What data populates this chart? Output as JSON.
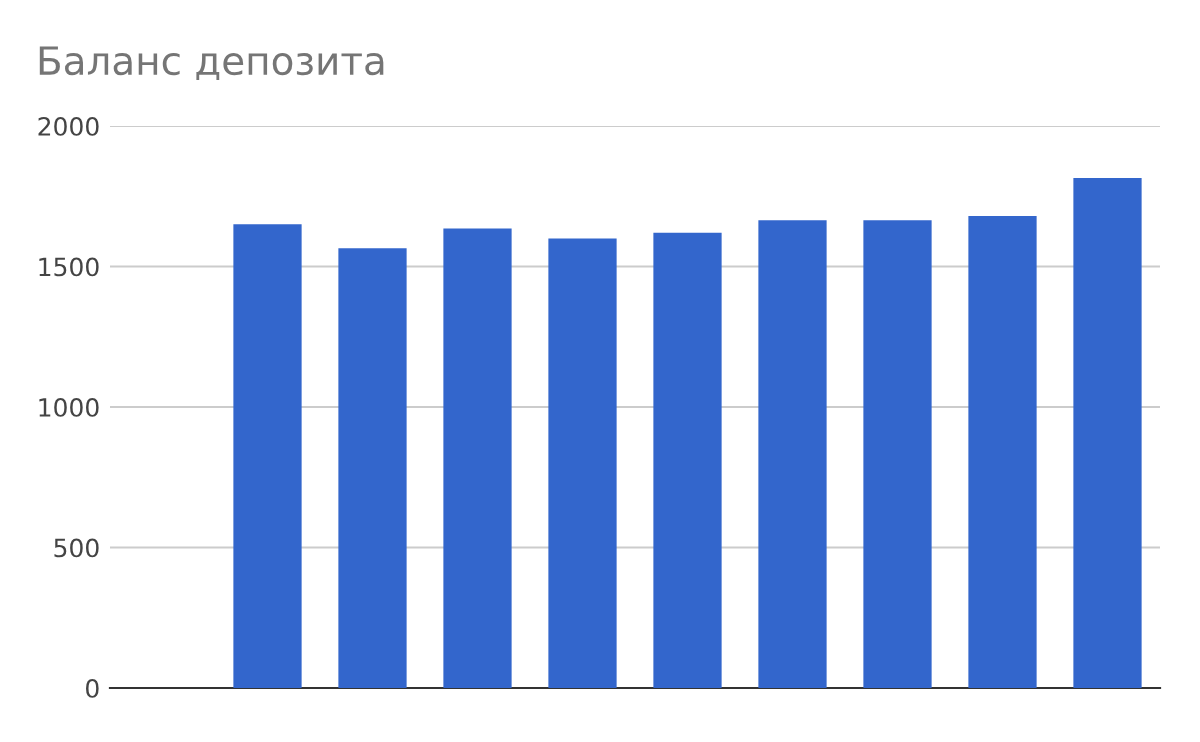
{
  "chart_data": {
    "type": "bar",
    "title": "Баланс депозита",
    "categories": [
      null,
      null,
      null,
      null,
      null,
      null,
      null,
      null,
      null,
      null
    ],
    "values": [
      null,
      1650,
      1565,
      1635,
      1600,
      1620,
      1665,
      1665,
      1680,
      1815
    ],
    "color": "#3366cc",
    "ylim": [
      0,
      2000
    ],
    "yticks": [
      0,
      500,
      1000,
      1500,
      2000
    ],
    "grid": "y",
    "legend": false
  }
}
